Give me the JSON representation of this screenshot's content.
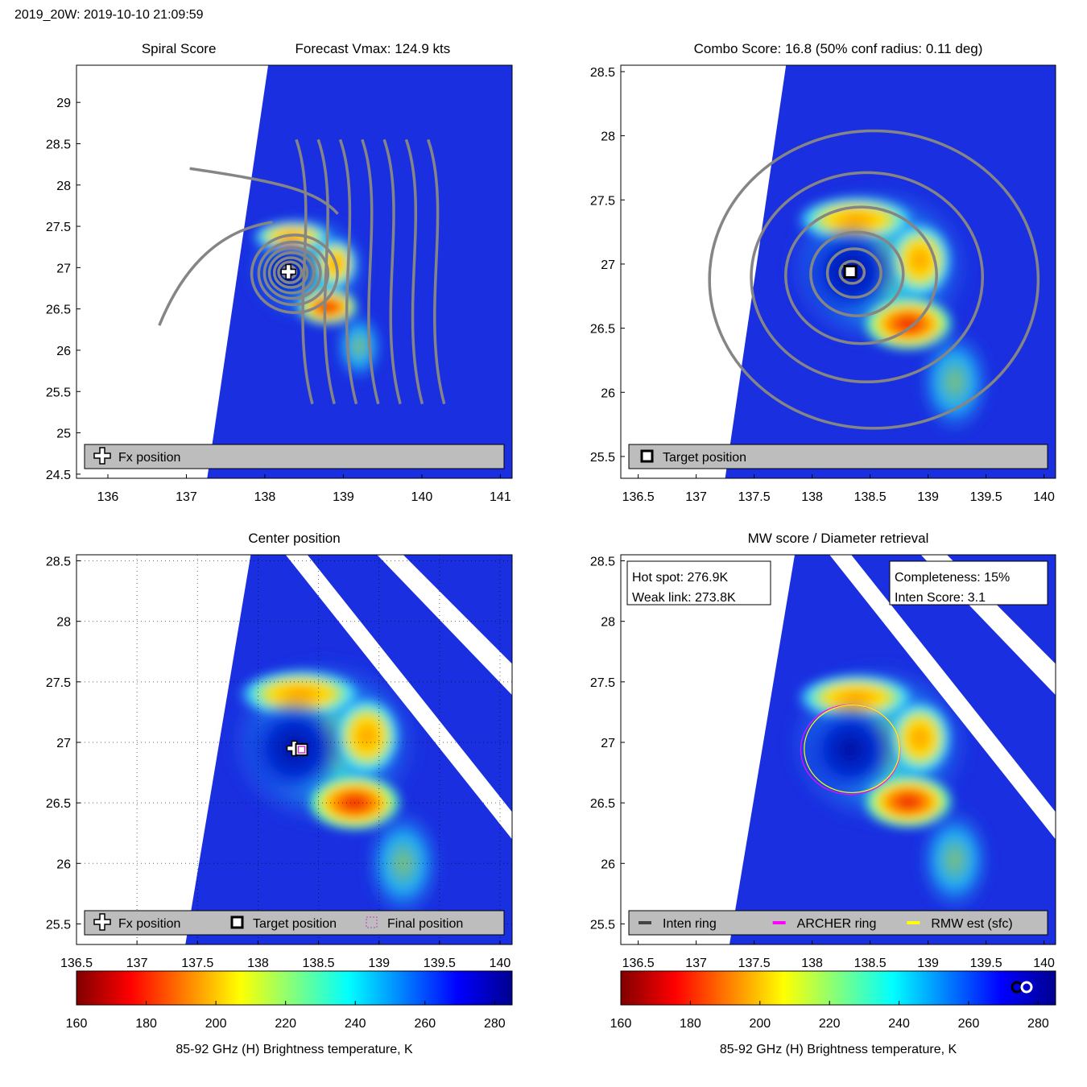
{
  "suptitle": "2019_20W: 2019-10-10 21:09:59",
  "colors": {
    "swath_bg": "#1a2fe0",
    "contour": "#858585",
    "legend_bg": "#bdbdbd",
    "archer_ring": "#ff00ff",
    "rmw_ring": "#ffff00",
    "inten_ring": "#444444",
    "final_marker": "#cc33cc"
  },
  "colormap": "jet",
  "chart_data": [
    {
      "id": "spiral",
      "type": "heatmap",
      "title_left": "Spiral Score",
      "title_right": "Forecast Vmax: 124.9 kts",
      "xlim": [
        135.6,
        141.15
      ],
      "ylim": [
        24.45,
        29.45
      ],
      "xticks": [
        136,
        137,
        138,
        139,
        140,
        141
      ],
      "yticks": [
        24.5,
        25,
        25.5,
        26,
        26.5,
        27,
        27.5,
        28,
        28.5,
        29
      ],
      "center": [
        138.3,
        26.95
      ],
      "legend": [
        {
          "marker": "plus",
          "label": "Fx position"
        }
      ]
    },
    {
      "id": "combo",
      "type": "heatmap",
      "title": "Combo Score: 16.8  (50% conf radius: 0.11 deg)",
      "xlim": [
        136.35,
        140.1
      ],
      "ylim": [
        25.33,
        28.55
      ],
      "xticks": [
        136.5,
        137,
        137.5,
        138,
        138.5,
        139,
        139.5,
        140
      ],
      "yticks": [
        25.5,
        26,
        26.5,
        27,
        27.5,
        28,
        28.5
      ],
      "center": [
        138.33,
        26.94
      ],
      "legend": [
        {
          "marker": "square",
          "label": "Target position"
        }
      ]
    },
    {
      "id": "center",
      "type": "heatmap",
      "title": "Center position",
      "xlim": [
        136.5,
        140.1
      ],
      "ylim": [
        25.33,
        28.55
      ],
      "xticks": [
        136.5,
        137,
        137.5,
        138,
        138.5,
        139,
        139.5,
        140
      ],
      "yticks": [
        25.5,
        26,
        26.5,
        27,
        27.5,
        28,
        28.5
      ],
      "center": [
        138.3,
        26.95
      ],
      "target": [
        138.36,
        26.94
      ],
      "legend": [
        {
          "marker": "plus",
          "label": "Fx position"
        },
        {
          "marker": "square",
          "label": "Target position"
        },
        {
          "marker": "dotted-square",
          "label": "Final position"
        }
      ]
    },
    {
      "id": "mw",
      "type": "heatmap",
      "title": "MW score / Diameter retrieval",
      "xlim": [
        136.35,
        140.1
      ],
      "ylim": [
        25.33,
        28.55
      ],
      "xticks": [
        136.5,
        137,
        137.5,
        138,
        138.5,
        139,
        139.5,
        140
      ],
      "yticks": [
        25.5,
        26,
        26.5,
        27,
        27.5,
        28,
        28.5
      ],
      "center": [
        138.33,
        26.94
      ],
      "ring_radius_deg": 0.42,
      "annotations": [
        {
          "corner": "top-left",
          "lines": [
            "Hot spot: 276.9K",
            "Weak link: 273.8K"
          ]
        },
        {
          "corner": "top-right",
          "lines": [
            "Completeness: 15%",
            "Inten Score: 3.1"
          ]
        }
      ],
      "legend": [
        {
          "marker": "line-dark",
          "label": "Inten ring"
        },
        {
          "marker": "line-magenta",
          "label": "ARCHER ring"
        },
        {
          "marker": "line-yellow",
          "label": "RMW est (sfc)"
        }
      ]
    }
  ],
  "colorbar": {
    "min": 160,
    "max": 285,
    "ticks": [
      160,
      180,
      200,
      220,
      240,
      260,
      280
    ],
    "label": "85-92 GHz (H) Brightness temperature, K"
  }
}
